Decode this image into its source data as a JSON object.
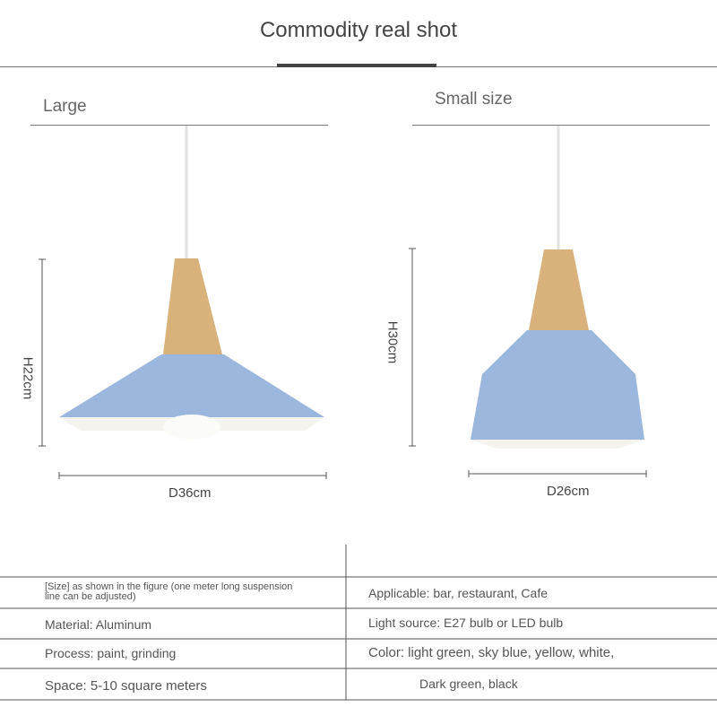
{
  "header": {
    "title": "Commodity real shot"
  },
  "large": {
    "label": "Large",
    "height": "H22cm",
    "diameter": "D36cm"
  },
  "small": {
    "label": "Small size",
    "height": "H30cm",
    "diameter": "D26cm"
  },
  "specs": {
    "size_note": "[Size] as shown in the figure (one meter long suspension line can be adjusted)",
    "applicable": "Applicable:  bar, restaurant, Cafe",
    "material": "Material: Aluminum",
    "light_source": "Light source:  E27 bulb or LED bulb",
    "process": "Process:  paint, grinding",
    "color": "Color:  light green, sky blue, yellow, white,",
    "space": "Space:  5-10 square meters",
    "color_cont": "Dark green, black"
  },
  "colors": {
    "shade": "#9cb7de",
    "wood": "#d8b27a",
    "inner": "#f5f3ee"
  }
}
